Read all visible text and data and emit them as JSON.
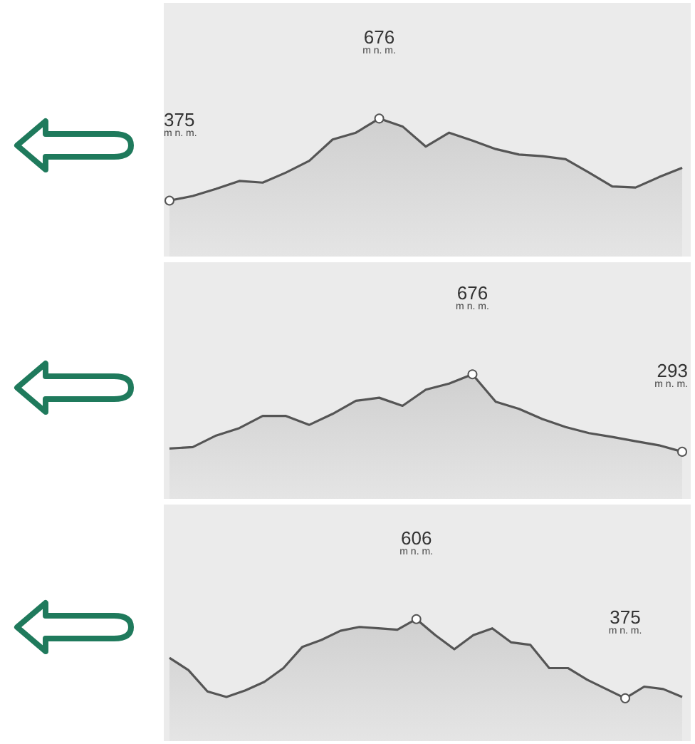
{
  "chart_data": [
    {
      "type": "area",
      "tick_labels": false,
      "ylim": [
        170,
        1100
      ],
      "color": "#555555",
      "categories": [
        null,
        null,
        null,
        null,
        null,
        null,
        null,
        null,
        null,
        null,
        null,
        null,
        null,
        null,
        null,
        null,
        null,
        null,
        null,
        null,
        null,
        null,
        null
      ],
      "values": [
        375,
        392,
        418,
        447,
        441,
        478,
        521,
        599,
        624,
        676,
        647,
        573,
        624,
        595,
        564,
        544,
        538,
        527,
        478,
        427,
        423,
        461,
        495
      ],
      "value_labels": [
        "375\nm n. m.",
        null,
        null,
        null,
        null,
        null,
        null,
        null,
        null,
        "676\nm n. m.",
        null,
        null,
        null,
        null,
        null,
        null,
        null,
        null,
        null,
        null,
        null,
        null,
        null
      ]
    },
    {
      "type": "area",
      "tick_labels": false,
      "ylim": [
        60,
        1230
      ],
      "color": "#555555",
      "categories": [
        null,
        null,
        null,
        null,
        null,
        null,
        null,
        null,
        null,
        null,
        null,
        null,
        null,
        null,
        null,
        null,
        null,
        null,
        null,
        null,
        null,
        null,
        null
      ],
      "values": [
        309,
        316,
        373,
        410,
        470,
        470,
        426,
        480,
        545,
        560,
        520,
        600,
        630,
        676,
        540,
        505,
        455,
        415,
        385,
        366,
        345,
        325,
        293
      ],
      "value_labels": [
        null,
        null,
        null,
        null,
        null,
        null,
        null,
        null,
        null,
        null,
        null,
        null,
        null,
        "676\nm n. m.",
        null,
        null,
        null,
        null,
        null,
        null,
        null,
        null,
        "293\nm n. m."
      ]
    },
    {
      "type": "area",
      "tick_labels": false,
      "ylim": [
        250,
        940
      ],
      "color": "#555555",
      "categories": [
        null,
        null,
        null,
        null,
        null,
        null,
        null,
        null,
        null,
        null,
        null,
        null,
        null,
        null,
        null,
        null,
        null,
        null,
        null,
        null,
        null,
        null,
        null,
        null,
        null,
        null,
        null,
        null
      ],
      "values": [
        493,
        457,
        395,
        379,
        398,
        423,
        463,
        525,
        545,
        572,
        583,
        579,
        575,
        606,
        559,
        518,
        559,
        579,
        538,
        531,
        463,
        463,
        429,
        402,
        375,
        409,
        402,
        379
      ],
      "value_labels": [
        null,
        null,
        null,
        null,
        null,
        null,
        null,
        null,
        null,
        null,
        null,
        null,
        null,
        "606\nm n. m.",
        null,
        null,
        null,
        null,
        null,
        null,
        null,
        null,
        null,
        null,
        "375\nm n. m.",
        null,
        null,
        null
      ]
    }
  ]
}
